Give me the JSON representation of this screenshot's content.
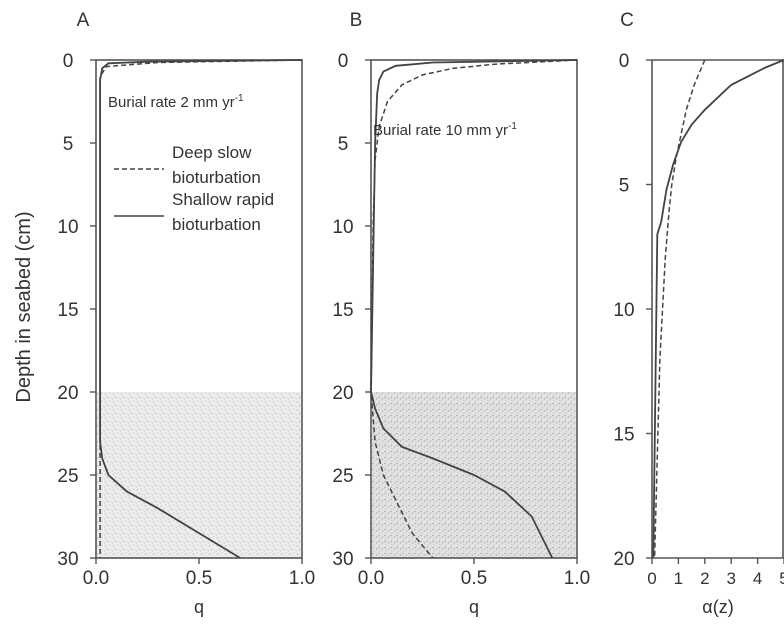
{
  "figure": {
    "ylabel": "Depth in seabed (cm)"
  },
  "chart_data": [
    {
      "panel": "A",
      "type": "line",
      "xlabel": "q",
      "ylabel": "Depth in seabed (cm)",
      "xlim": [
        0,
        1
      ],
      "ylim": [
        0,
        30
      ],
      "y_inverted": true,
      "x_ticks": [
        "0.0",
        "0.5",
        "1.0"
      ],
      "y_ticks": [
        "0",
        "5",
        "10",
        "15",
        "20",
        "25",
        "30"
      ],
      "shaded_region_depth": [
        20,
        30
      ],
      "annotation": {
        "text": "Burial rate 2 mm yr",
        "sup": "-1"
      },
      "legend": [
        {
          "label": "Deep slow\nbioturbation",
          "label_lines": [
            "Deep slow",
            "bioturbation"
          ],
          "style": "dashed"
        },
        {
          "label": "Shallow rapid\nbioturbation",
          "label_lines": [
            "Shallow rapid",
            "bioturbation"
          ],
          "style": "solid"
        }
      ],
      "series": [
        {
          "name": "Deep slow bioturbation",
          "style": "dashed",
          "points": [
            [
              1.0,
              0
            ],
            [
              0.3,
              0.15
            ],
            [
              0.05,
              0.4
            ],
            [
              0.02,
              1
            ],
            [
              0.02,
              5
            ],
            [
              0.02,
              20
            ],
            [
              0.02,
              25
            ],
            [
              0.02,
              30
            ]
          ]
        },
        {
          "name": "Shallow rapid bioturbation",
          "style": "solid",
          "points": [
            [
              1.0,
              0
            ],
            [
              0.25,
              0.1
            ],
            [
              0.06,
              0.2
            ],
            [
              0.03,
              0.5
            ],
            [
              0.02,
              1.2
            ],
            [
              0.02,
              5
            ],
            [
              0.02,
              20
            ],
            [
              0.02,
              23
            ],
            [
              0.03,
              24
            ],
            [
              0.06,
              25
            ],
            [
              0.15,
              26
            ],
            [
              0.3,
              27
            ],
            [
              0.5,
              28.5
            ],
            [
              0.7,
              30
            ]
          ]
        }
      ]
    },
    {
      "panel": "B",
      "type": "line",
      "xlabel": "q",
      "xlim": [
        0,
        1
      ],
      "ylim": [
        0,
        30
      ],
      "y_inverted": true,
      "x_ticks": [
        "0.0",
        "0.5",
        "1.0"
      ],
      "y_ticks": [
        "0",
        "5",
        "10",
        "15",
        "20",
        "25",
        "30"
      ],
      "shaded_region_depth": [
        20,
        30
      ],
      "annotation": {
        "text": "Burial rate 10 mm yr",
        "sup": "-1"
      },
      "series": [
        {
          "name": "Deep slow bioturbation",
          "style": "dashed",
          "points": [
            [
              1.0,
              0
            ],
            [
              0.6,
              0.25
            ],
            [
              0.4,
              0.5
            ],
            [
              0.25,
              0.9
            ],
            [
              0.15,
              1.5
            ],
            [
              0.08,
              2.5
            ],
            [
              0.04,
              4
            ],
            [
              0.02,
              6
            ],
            [
              0.01,
              10
            ],
            [
              0.0,
              20
            ],
            [
              0.02,
              23
            ],
            [
              0.06,
              25
            ],
            [
              0.12,
              26.5
            ],
            [
              0.2,
              28.5
            ],
            [
              0.3,
              30
            ]
          ]
        },
        {
          "name": "Shallow rapid bioturbation",
          "style": "solid",
          "points": [
            [
              1.0,
              0
            ],
            [
              0.3,
              0.15
            ],
            [
              0.12,
              0.35
            ],
            [
              0.06,
              0.7
            ],
            [
              0.04,
              1.2
            ],
            [
              0.03,
              2
            ],
            [
              0.02,
              5
            ],
            [
              0.0,
              20
            ],
            [
              0.02,
              21
            ],
            [
              0.06,
              22.2
            ],
            [
              0.15,
              23.3
            ],
            [
              0.3,
              24
            ],
            [
              0.5,
              25
            ],
            [
              0.65,
              26
            ],
            [
              0.78,
              27.5
            ],
            [
              0.88,
              30
            ]
          ]
        }
      ]
    },
    {
      "panel": "C",
      "type": "line",
      "xlabel": "α(z)",
      "xlim": [
        0,
        5
      ],
      "ylim": [
        0,
        20
      ],
      "y_inverted": true,
      "x_ticks": [
        "0",
        "1",
        "2",
        "3",
        "4",
        "5"
      ],
      "y_ticks": [
        "0",
        "5",
        "10",
        "15",
        "20"
      ],
      "series": [
        {
          "name": "Deep slow bioturbation",
          "style": "dashed",
          "points": [
            [
              2.0,
              0
            ],
            [
              1.6,
              1
            ],
            [
              1.3,
              2
            ],
            [
              1.1,
              3
            ],
            [
              0.9,
              4
            ],
            [
              0.75,
              5
            ],
            [
              0.65,
              6
            ],
            [
              0.5,
              8
            ],
            [
              0.3,
              12
            ],
            [
              0.1,
              20
            ]
          ]
        },
        {
          "name": "Shallow rapid bioturbation",
          "style": "solid",
          "points": [
            [
              5.0,
              0
            ],
            [
              4.3,
              0.3
            ],
            [
              3.0,
              1
            ],
            [
              2.0,
              2
            ],
            [
              1.5,
              2.6
            ],
            [
              1.1,
              3.3
            ],
            [
              0.8,
              4.2
            ],
            [
              0.55,
              5.2
            ],
            [
              0.35,
              6.5
            ],
            [
              0.2,
              7
            ],
            [
              0.05,
              20
            ]
          ]
        }
      ]
    }
  ]
}
